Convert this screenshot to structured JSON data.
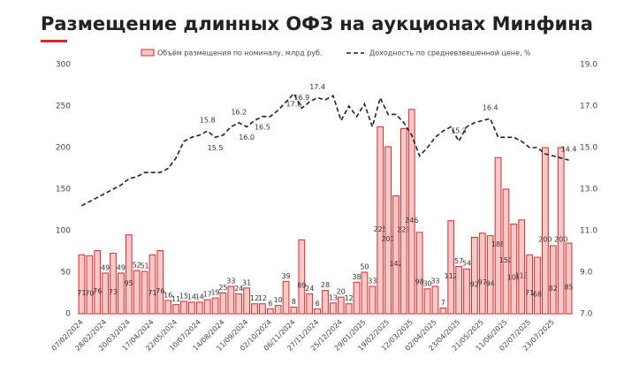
{
  "chart_data": {
    "type": "bar_line",
    "title": "Размещение длинных ОФЗ на аукционах Минфина",
    "categories": [
      "07/02/2024",
      null,
      null,
      "28/02/2024",
      null,
      null,
      "20/03/2024",
      null,
      null,
      "17/04/2024",
      null,
      null,
      "22/05/2024",
      null,
      null,
      "10/07/2024",
      null,
      null,
      "14/08/2024",
      null,
      null,
      "11/09/2024",
      null,
      null,
      "02/10/2024",
      null,
      null,
      "06/11/2024",
      null,
      null,
      "27/11/2024",
      null,
      null,
      "25/12/2024",
      null,
      null,
      "29/01/2025",
      null,
      null,
      "19/02/2025",
      null,
      null,
      "12/03/2025",
      null,
      null,
      "02/04/2025",
      null,
      null,
      "23/04/2025",
      null,
      null,
      "21/05/2025",
      null,
      null,
      "11/06/2025",
      null,
      null,
      "02/07/2025",
      null,
      null,
      "23/07/2025",
      null,
      null
    ],
    "series": [
      {
        "name": "Объём размещения по номиналу, млрд руб.",
        "color": "#d62b2b",
        "axis": "y",
        "values": [
          71,
          70,
          76,
          49,
          73,
          49,
          95,
          52,
          51,
          71,
          76,
          16,
          11,
          15,
          14,
          14,
          17,
          19,
          25,
          33,
          24,
          31,
          12,
          12,
          6,
          10,
          39,
          8,
          89,
          24,
          6,
          28,
          13,
          20,
          12,
          38,
          50,
          33,
          225,
          201,
          142,
          223,
          246,
          98,
          30,
          33,
          7,
          112,
          57,
          54,
          92,
          97,
          94,
          188,
          150,
          108,
          113,
          71,
          68,
          200,
          82,
          200,
          85
        ]
      },
      {
        "name": "Доходность по средневзвешенной цене, %",
        "color": "#222222",
        "axis": "y2",
        "values": [
          12.2,
          12.4,
          12.6,
          12.8,
          13.0,
          13.2,
          13.5,
          13.6,
          13.8,
          13.8,
          13.8,
          14.0,
          14.5,
          15.3,
          15.5,
          15.6,
          15.8,
          15.5,
          15.6,
          16.0,
          16.2,
          16.0,
          16.3,
          16.5,
          16.5,
          16.8,
          17.2,
          17.6,
          16.9,
          17.2,
          17.4,
          17.3,
          17.5,
          16.3,
          17.0,
          16.5,
          17.1,
          16.0,
          17.4,
          16.6,
          16.6,
          16.2,
          15.6,
          14.6,
          15.0,
          15.5,
          15.8,
          16.0,
          15.3,
          16.0,
          16.2,
          16.3,
          16.4,
          15.5,
          15.5,
          15.5,
          15.3,
          15.0,
          15.0,
          14.7,
          14.6,
          14.5,
          14.4
        ],
        "value_labels": [
          null,
          null,
          null,
          null,
          null,
          null,
          null,
          null,
          null,
          null,
          null,
          null,
          null,
          null,
          null,
          null,
          "15.8",
          "15.5",
          null,
          null,
          "16.2",
          "16.0",
          null,
          "16.5",
          null,
          null,
          null,
          "17.6",
          "16.9",
          null,
          "17.4",
          null,
          null,
          null,
          null,
          null,
          null,
          null,
          null,
          null,
          null,
          null,
          null,
          null,
          null,
          null,
          null,
          null,
          "15.3",
          null,
          null,
          null,
          "16.4",
          null,
          null,
          null,
          null,
          null,
          null,
          null,
          null,
          null,
          "14.4"
        ]
      }
    ],
    "ylim": [
      0,
      300
    ],
    "yticks": [
      0,
      50,
      100,
      150,
      200,
      250,
      300
    ],
    "y2lim": [
      7,
      19
    ],
    "y2ticks": [
      {
        "value": 7,
        "label": "7.0"
      },
      {
        "value": 9,
        "label": "9.0"
      },
      {
        "value": 11,
        "label": "11.0"
      },
      {
        "value": 13,
        "label": "13.0"
      },
      {
        "value": 15,
        "label": "15.0"
      },
      {
        "value": 17,
        "label": "17.0"
      },
      {
        "value": 19,
        "label": "19.0"
      }
    ],
    "grid": false,
    "legend": "top"
  }
}
